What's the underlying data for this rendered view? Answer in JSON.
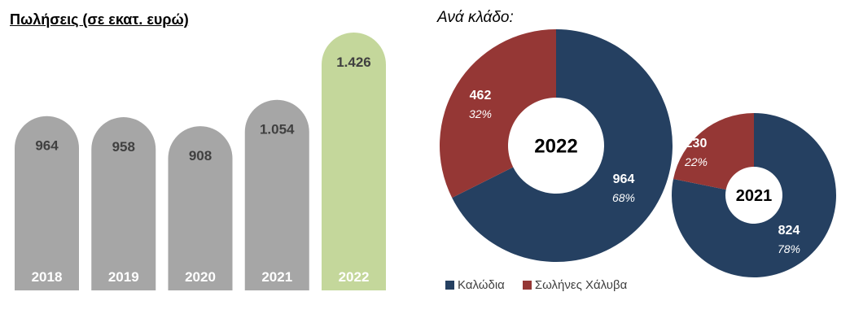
{
  "chart_data": [
    {
      "type": "bar",
      "title": "Πωλήσεις (σε εκατ. ευρώ)",
      "categories": [
        "2018",
        "2019",
        "2020",
        "2021",
        "2022"
      ],
      "values": [
        964,
        958,
        908,
        1054,
        1426
      ],
      "colors": [
        "#a6a6a6",
        "#a6a6a6",
        "#a6a6a6",
        "#a6a6a6",
        "#c4d79b"
      ],
      "axes_visible": false,
      "grid": false
    },
    {
      "type": "pie",
      "doughnut": true,
      "title": "Ανά κλάδο:",
      "categories": [
        "Καλώδια",
        "Σωλήνες Χάλυβα"
      ],
      "colors": [
        "#254061",
        "#953735"
      ],
      "series": [
        {
          "name": "2022",
          "values": [
            964,
            462
          ],
          "percents": [
            "68%",
            "32%"
          ]
        },
        {
          "name": "2021",
          "values": [
            824,
            230
          ],
          "percents": [
            "78%",
            "22%"
          ]
        }
      ],
      "legend_placement": "bottom-left",
      "grid": false
    }
  ]
}
